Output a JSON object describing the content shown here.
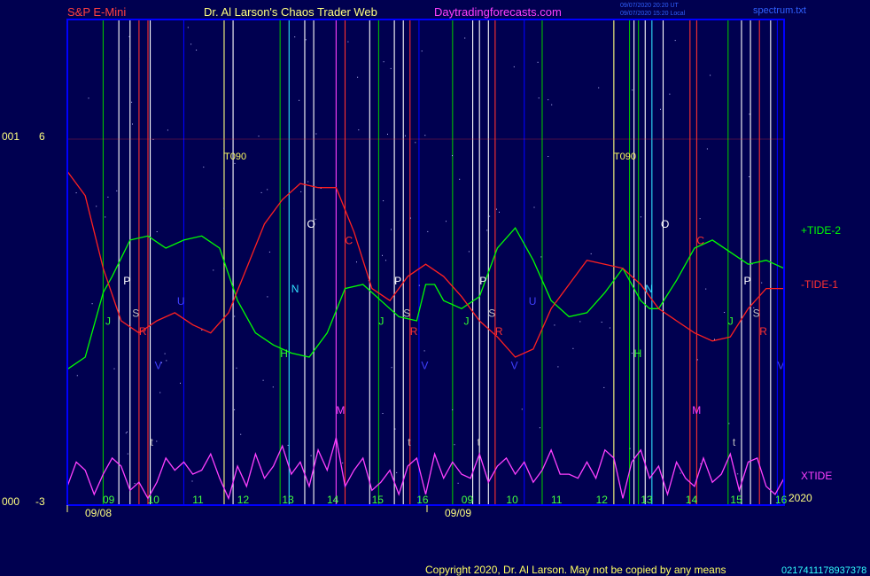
{
  "header": {
    "market": "S&P E-Mini",
    "author": "Dr. Al Larson's Chaos Trader Web",
    "site": "Daytradingforecasts.com",
    "timestamp_line1": "09/07/2020 20:20 UT",
    "timestamp_line2": "09/07/2020 15:20 Local",
    "file": "spectrum.txt"
  },
  "footer": {
    "copyright": "Copyright 2020, Dr. Al Larson. May not be copied by any means",
    "code": "0217411178937378",
    "year": "2020"
  },
  "axis": {
    "y_top_code": "001",
    "y_top_value": "6",
    "y_bottom_code": "000",
    "y_bottom_value": "-3",
    "date_labels": [
      "09/08",
      "09/09"
    ],
    "hour_labels": [
      "09",
      "10",
      "11",
      "12",
      "13",
      "14",
      "15",
      "16",
      "09",
      "10",
      "11",
      "12",
      "13",
      "14",
      "15",
      "16"
    ]
  },
  "colors": {
    "background": "#000050",
    "frame": "#0000ff",
    "tide2": "#00ff00",
    "tide1": "#ff2020",
    "xtide": "#ff40ff",
    "title_red": "#ff4040",
    "title_yellow": "#ffff80",
    "title_magenta": "#ff40ff",
    "hour_green": "#40ff40"
  },
  "chart_data": {
    "type": "line",
    "xlabel": "",
    "ylabel": "",
    "ylim": [
      -3,
      6
    ],
    "grid": false,
    "series": [
      {
        "name": "+TIDE-2",
        "color": "#00ff00",
        "x": [
          0,
          0.4,
          0.8,
          1.0,
          1.4,
          1.8,
          2.2,
          2.6,
          3.0,
          3.4,
          3.8,
          4.2,
          4.6,
          5.0,
          5.4,
          5.8,
          6.2,
          6.6,
          7.0,
          7.4,
          7.8,
          8.0,
          8.2,
          8.4,
          8.8,
          9.2,
          9.6,
          10.0,
          10.4,
          10.8,
          11.2,
          11.6,
          12.0,
          12.4,
          12.8,
          13.0,
          13.2,
          13.6,
          14.0,
          14.4,
          14.8,
          15.2,
          15.6,
          16.0
        ],
        "values": [
          0.3,
          0.6,
          2.2,
          2.6,
          3.5,
          3.6,
          3.3,
          3.5,
          3.6,
          3.3,
          2.0,
          1.2,
          0.9,
          0.7,
          0.6,
          1.2,
          2.3,
          2.4,
          2.0,
          1.6,
          1.5,
          2.4,
          2.4,
          2.0,
          1.8,
          2.1,
          3.3,
          3.8,
          3.0,
          2.0,
          1.6,
          1.7,
          2.2,
          2.8,
          2.0,
          1.8,
          1.8,
          2.5,
          3.3,
          3.5,
          3.2,
          2.9,
          3.0,
          2.8
        ]
      },
      {
        "name": "-TIDE-1",
        "color": "#ff2020",
        "x": [
          0,
          0.4,
          0.8,
          1.2,
          1.6,
          2.0,
          2.4,
          2.8,
          3.2,
          3.6,
          4.0,
          4.4,
          4.8,
          5.2,
          5.6,
          6.0,
          6.4,
          6.8,
          7.2,
          7.6,
          8.0,
          8.4,
          8.8,
          9.2,
          9.6,
          10.0,
          10.4,
          10.8,
          11.2,
          11.6,
          12.0,
          12.4,
          12.8,
          13.2,
          13.6,
          14.0,
          14.4,
          14.8,
          15.2,
          15.6,
          16.0
        ],
        "values": [
          5.2,
          4.6,
          2.8,
          1.5,
          1.2,
          1.5,
          1.7,
          1.4,
          1.2,
          1.7,
          2.8,
          3.9,
          4.5,
          4.9,
          4.8,
          4.8,
          3.7,
          2.3,
          2.0,
          2.6,
          2.9,
          2.6,
          2.1,
          1.5,
          1.1,
          0.6,
          0.8,
          1.8,
          2.4,
          3.0,
          2.9,
          2.8,
          2.4,
          1.8,
          1.5,
          1.2,
          1.0,
          1.1,
          1.8,
          2.3,
          2.3
        ]
      },
      {
        "name": "XTIDE",
        "color": "#ff40ff",
        "x": [
          0,
          0.2,
          0.4,
          0.6,
          0.8,
          1.0,
          1.2,
          1.4,
          1.6,
          1.8,
          2.0,
          2.2,
          2.4,
          2.6,
          2.8,
          3.0,
          3.2,
          3.4,
          3.6,
          3.8,
          4.0,
          4.2,
          4.4,
          4.6,
          4.8,
          5.0,
          5.2,
          5.4,
          5.6,
          5.8,
          6.0,
          6.2,
          6.4,
          6.6,
          6.8,
          7.0,
          7.2,
          7.4,
          7.6,
          7.8,
          8.0,
          8.2,
          8.4,
          8.6,
          8.8,
          9.0,
          9.2,
          9.4,
          9.6,
          9.8,
          10.0,
          10.2,
          10.4,
          10.6,
          10.8,
          11.0,
          11.2,
          11.4,
          11.6,
          11.8,
          12.0,
          12.2,
          12.4,
          12.6,
          12.8,
          13.0,
          13.2,
          13.4,
          13.6,
          13.8,
          14.0,
          14.2,
          14.4,
          14.6,
          14.8,
          15.0,
          15.2,
          15.4,
          15.6,
          15.8,
          16.0
        ],
        "values": [
          -2.6,
          -2.0,
          -2.2,
          -2.8,
          -2.3,
          -1.9,
          -2.1,
          -2.7,
          -2.5,
          -2.9,
          -2.5,
          -1.9,
          -2.2,
          -2.0,
          -2.3,
          -2.2,
          -1.8,
          -2.4,
          -2.9,
          -2.1,
          -2.6,
          -1.8,
          -2.4,
          -2.1,
          -1.6,
          -2.3,
          -2.0,
          -2.6,
          -1.7,
          -2.2,
          -1.4,
          -2.6,
          -2.2,
          -1.9,
          -2.7,
          -2.5,
          -2.2,
          -2.8,
          -2.1,
          -1.9,
          -2.8,
          -1.8,
          -2.4,
          -2.0,
          -2.3,
          -2.4,
          -1.8,
          -2.5,
          -2.1,
          -1.9,
          -2.3,
          -2.0,
          -2.5,
          -2.2,
          -1.7,
          -2.3,
          -2.3,
          -2.4,
          -2.0,
          -2.4,
          -1.7,
          -1.9,
          -2.9,
          -2.0,
          -1.7,
          -2.4,
          -2.1,
          -2.8,
          -2.0,
          -2.4,
          -2.6,
          -1.9,
          -2.5,
          -2.3,
          -1.8,
          -2.7,
          -2.0,
          -1.9,
          -2.6,
          -2.8,
          -2.4
        ]
      }
    ],
    "markers": [
      {
        "t": "T090",
        "x": 3.5,
        "y": 5.5,
        "color": "#ffff60"
      },
      {
        "t": "T090",
        "x": 12.2,
        "y": 5.5,
        "color": "#ffff60"
      },
      {
        "t": "P",
        "x": 1.25,
        "y": 2.4,
        "color": "#ffffff"
      },
      {
        "t": "S",
        "x": 1.45,
        "y": 1.6,
        "color": "#c0c0c0"
      },
      {
        "t": "R",
        "x": 1.6,
        "y": 1.15,
        "color": "#ff3030"
      },
      {
        "t": "J",
        "x": 0.85,
        "y": 1.4,
        "color": "#30ff30"
      },
      {
        "t": "U",
        "x": 2.45,
        "y": 1.9,
        "color": "#4040ff"
      },
      {
        "t": "V",
        "x": 1.95,
        "y": 0.3,
        "color": "#4040ff"
      },
      {
        "t": "t",
        "x": 1.85,
        "y": -1.6,
        "color": "#c0c0c0"
      },
      {
        "t": "O",
        "x": 5.35,
        "y": 3.8,
        "color": "#ffffff"
      },
      {
        "t": "N",
        "x": 5.0,
        "y": 2.2,
        "color": "#30e0ff"
      },
      {
        "t": "H",
        "x": 4.75,
        "y": 0.6,
        "color": "#30ff30"
      },
      {
        "t": "C",
        "x": 6.2,
        "y": 3.4,
        "color": "#ff3030"
      },
      {
        "t": "M",
        "x": 6.0,
        "y": -0.8,
        "color": "#ff40ff"
      },
      {
        "t": "P",
        "x": 7.3,
        "y": 2.4,
        "color": "#ffffff"
      },
      {
        "t": "S",
        "x": 7.5,
        "y": 1.6,
        "color": "#c0c0c0"
      },
      {
        "t": "J",
        "x": 6.95,
        "y": 1.4,
        "color": "#30ff30"
      },
      {
        "t": "R",
        "x": 7.65,
        "y": 1.15,
        "color": "#ff3030"
      },
      {
        "t": "t",
        "x": 7.6,
        "y": -1.6,
        "color": "#c0c0c0"
      },
      {
        "t": "V",
        "x": 7.9,
        "y": 0.3,
        "color": "#4040ff"
      },
      {
        "t": "P",
        "x": 9.2,
        "y": 2.4,
        "color": "#ffffff"
      },
      {
        "t": "S",
        "x": 9.4,
        "y": 1.6,
        "color": "#c0c0c0"
      },
      {
        "t": "J",
        "x": 8.85,
        "y": 1.4,
        "color": "#30ff30"
      },
      {
        "t": "R",
        "x": 9.55,
        "y": 1.15,
        "color": "#ff3030"
      },
      {
        "t": "U",
        "x": 10.3,
        "y": 1.9,
        "color": "#4040ff"
      },
      {
        "t": "V",
        "x": 9.9,
        "y": 0.3,
        "color": "#4040ff"
      },
      {
        "t": "t",
        "x": 9.15,
        "y": -1.6,
        "color": "#c0c0c0"
      },
      {
        "t": "O",
        "x": 13.25,
        "y": 3.8,
        "color": "#ffffff"
      },
      {
        "t": "N",
        "x": 12.9,
        "y": 2.2,
        "color": "#30e0ff"
      },
      {
        "t": "H",
        "x": 12.65,
        "y": 0.6,
        "color": "#30ff30"
      },
      {
        "t": "C",
        "x": 14.05,
        "y": 3.4,
        "color": "#ff3030"
      },
      {
        "t": "M",
        "x": 13.95,
        "y": -0.8,
        "color": "#ff40ff"
      },
      {
        "t": "P",
        "x": 15.1,
        "y": 2.4,
        "color": "#ffffff"
      },
      {
        "t": "S",
        "x": 15.3,
        "y": 1.6,
        "color": "#c0c0c0"
      },
      {
        "t": "J",
        "x": 14.75,
        "y": 1.4,
        "color": "#30ff30"
      },
      {
        "t": "R",
        "x": 15.45,
        "y": 1.15,
        "color": "#ff3030"
      },
      {
        "t": "t",
        "x": 14.85,
        "y": -1.6,
        "color": "#c0c0c0"
      },
      {
        "t": "V",
        "x": 15.85,
        "y": 0.3,
        "color": "#4040ff"
      }
    ],
    "vlines": [
      {
        "x": 0.8,
        "c": "#00c000"
      },
      {
        "x": 1.15,
        "c": "#ffffff"
      },
      {
        "x": 1.4,
        "c": "#ffffff"
      },
      {
        "x": 1.6,
        "c": "#ff3030"
      },
      {
        "x": 1.8,
        "c": "#ff3030"
      },
      {
        "x": 1.85,
        "c": "#ffffff"
      },
      {
        "x": 2.6,
        "c": "#0000ff"
      },
      {
        "x": 3.5,
        "c": "#ffff80"
      },
      {
        "x": 3.7,
        "c": "#ffffff"
      },
      {
        "x": 4.75,
        "c": "#00c000"
      },
      {
        "x": 4.95,
        "c": "#30e0ff"
      },
      {
        "x": 5.3,
        "c": "#ffffff"
      },
      {
        "x": 5.5,
        "c": "#ffffff"
      },
      {
        "x": 6.0,
        "c": "#ff40ff"
      },
      {
        "x": 6.2,
        "c": "#ff3030"
      },
      {
        "x": 6.75,
        "c": "#ffffff"
      },
      {
        "x": 6.95,
        "c": "#00c000"
      },
      {
        "x": 7.3,
        "c": "#ffffff"
      },
      {
        "x": 7.5,
        "c": "#ffffff"
      },
      {
        "x": 7.65,
        "c": "#ff3030"
      },
      {
        "x": 7.85,
        "c": "#0000ff"
      },
      {
        "x": 8.6,
        "c": "#00c000"
      },
      {
        "x": 9.05,
        "c": "#ffffff"
      },
      {
        "x": 9.2,
        "c": "#ffffff"
      },
      {
        "x": 9.4,
        "c": "#ffffff"
      },
      {
        "x": 9.55,
        "c": "#ff3030"
      },
      {
        "x": 10.2,
        "c": "#0000ff"
      },
      {
        "x": 10.6,
        "c": "#00c000"
      },
      {
        "x": 12.2,
        "c": "#ffff80"
      },
      {
        "x": 12.55,
        "c": "#00c000"
      },
      {
        "x": 12.65,
        "c": "#ffffff"
      },
      {
        "x": 12.75,
        "c": "#00c000"
      },
      {
        "x": 12.9,
        "c": "#ffffff"
      },
      {
        "x": 13.05,
        "c": "#30e0ff"
      },
      {
        "x": 13.3,
        "c": "#ffffff"
      },
      {
        "x": 13.9,
        "c": "#ff3030"
      },
      {
        "x": 14.05,
        "c": "#ff3030"
      },
      {
        "x": 14.75,
        "c": "#00c000"
      },
      {
        "x": 15.05,
        "c": "#ffffff"
      },
      {
        "x": 15.25,
        "c": "#ffffff"
      },
      {
        "x": 15.45,
        "c": "#ff3030"
      },
      {
        "x": 15.7,
        "c": "#ffffff"
      },
      {
        "x": 15.85,
        "c": "#0000ff"
      }
    ]
  }
}
